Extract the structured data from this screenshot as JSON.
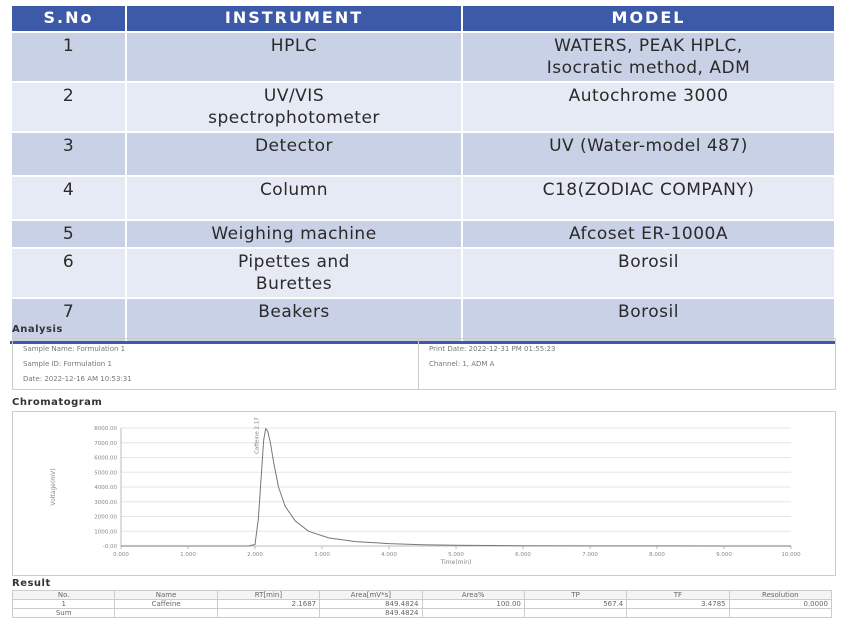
{
  "instrument_table": {
    "headers": [
      "S.No",
      "INSTRUMENT",
      "MODEL"
    ],
    "rows": [
      {
        "sno": "1",
        "instrument": "HPLC",
        "model": "WATERS, PEAK HPLC,\nIsocratic method, ADM"
      },
      {
        "sno": "2",
        "instrument": "UV/VIS\nspectrophotometer",
        "model": "Autochrome 3000"
      },
      {
        "sno": "3",
        "instrument": "Detector",
        "model": "UV (Water-model 487)"
      },
      {
        "sno": "4",
        "instrument": "Column",
        "model": "C18(ZODIAC COMPANY)"
      },
      {
        "sno": "5",
        "instrument": "Weighing machine",
        "model": "Afcoset ER-1000A"
      },
      {
        "sno": "6",
        "instrument": "Pipettes and\nBurettes",
        "model": "Borosil"
      },
      {
        "sno": "7",
        "instrument": "Beakers",
        "model": "Borosil"
      }
    ]
  },
  "analysis": {
    "title": "Analysis",
    "sample_name": "Sample Name:  Formulation 1",
    "sample_id": "Sample ID:  Formulation 1",
    "date": "Date: 2022-12-16 AM 10:53:31",
    "print_date": "Print Date:   2022-12-31 PM 01:55:23",
    "channel": "Channel: 1, ADM A"
  },
  "chromatogram": {
    "title": "Chromatogram",
    "peak_label": "Caffeine 2.17"
  },
  "chart_data": {
    "type": "line",
    "title": "",
    "xlabel": "Time(min)",
    "ylabel": "Voltage(mV)",
    "xlim": [
      0,
      10
    ],
    "ylim": [
      -0.0,
      8000
    ],
    "x_ticks": [
      "0.000",
      "1.000",
      "2.000",
      "3.000",
      "4.000",
      "5.000",
      "6.000",
      "7.000",
      "8.000",
      "9.000",
      "10.000"
    ],
    "y_ticks": [
      "-0.00",
      "1000.00",
      "2000.00",
      "3000.00",
      "4000.00",
      "5000.00",
      "6000.00",
      "7000.00",
      "8000.00"
    ],
    "series": [
      {
        "x": [
          0,
          1.0,
          1.9,
          2.0,
          2.05,
          2.1,
          2.13,
          2.16,
          2.19,
          2.23,
          2.28,
          2.35,
          2.45,
          2.6,
          2.8,
          3.1,
          3.5,
          4.0,
          4.5,
          5.0,
          6.0,
          7.0,
          8.0,
          9.0,
          10.0
        ],
        "y": [
          0,
          0,
          0,
          100,
          1800,
          5200,
          7200,
          7950,
          7800,
          7000,
          5600,
          4000,
          2700,
          1700,
          1000,
          550,
          300,
          160,
          90,
          50,
          20,
          10,
          5,
          0,
          0
        ]
      }
    ]
  },
  "result": {
    "title": "Result",
    "headers": [
      "No.",
      "Name",
      "RT[min]",
      "Area[mV*s]",
      "Area%",
      "TP",
      "TF",
      "Resolution"
    ],
    "rows": [
      [
        "1",
        "Caffeine",
        "2.1687",
        "849.4824",
        "100.00",
        "567.4",
        "3.4785",
        "0.0000"
      ],
      [
        "Sum",
        "",
        "",
        "849.4824",
        "",
        "",
        "",
        ""
      ]
    ]
  }
}
